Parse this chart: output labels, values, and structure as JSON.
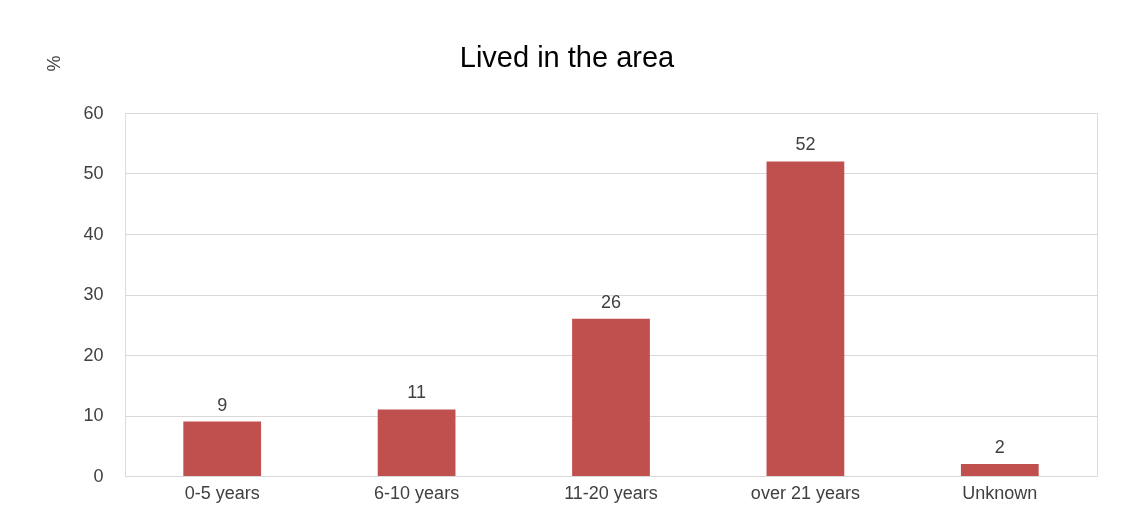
{
  "chart_data": {
    "type": "bar",
    "title": "Lived in the area",
    "ylabel": "%",
    "categories": [
      "0-5 years",
      "6-10 years",
      "11-20 years",
      "over 21 years",
      "Unknown"
    ],
    "values": [
      9,
      11,
      26,
      52,
      2
    ],
    "color": "#c0504d",
    "ylim": [
      0,
      60
    ],
    "yticks": [
      0,
      10,
      20,
      30,
      40,
      50,
      60
    ],
    "grid": "y",
    "data_labels": true
  }
}
